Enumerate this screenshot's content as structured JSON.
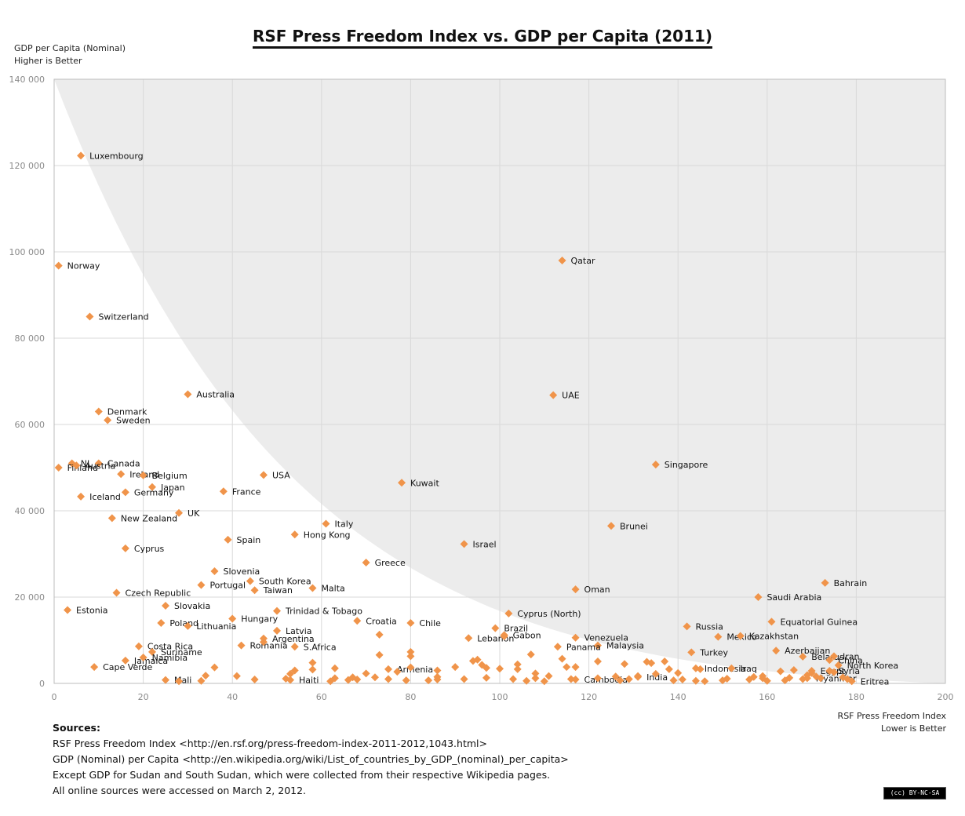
{
  "title": "RSF Press Freedom Index vs. GDP per Capita (2011)",
  "y_axis": {
    "line1": "GDP per Capita (Nominal)",
    "line2": "Higher is Better"
  },
  "x_axis": {
    "line1": "RSF Press Freedom Index",
    "line2": "Lower is Better"
  },
  "sources": {
    "heading": "Sources:",
    "lines": [
      "RSF Press Freedom Index <http://en.rsf.org/press-freedom-index-2011-2012,1043.html>",
      "GDP (Nominal) per Capita <http://en.wikipedia.org/wiki/List_of_countries_by_GDP_(nominal)_per_capita>",
      "Except GDP for Sudan and South Sudan, which were collected from their respective Wikipedia pages.",
      "All online sources were accessed on March 2, 2012."
    ]
  },
  "license_badge": "(cc) BY-NC-SA",
  "colors": {
    "marker": "#f0944a",
    "shade": "#ececec",
    "grid": "#d9d9d9"
  },
  "chart_data": {
    "type": "scatter",
    "xlim": [
      0,
      200
    ],
    "ylim": [
      0,
      140000
    ],
    "x_ticks": [
      0,
      20,
      40,
      60,
      80,
      100,
      120,
      140,
      160,
      180,
      200
    ],
    "y_ticks": [
      0,
      20000,
      40000,
      60000,
      80000,
      100000,
      120000,
      140000
    ],
    "y_tick_labels": [
      "0",
      "20 000",
      "40 000",
      "60 000",
      "80 000",
      "100 000",
      "120 000",
      "140 000"
    ],
    "grid": true,
    "shaded_region": "above decaying curve from (0, 140000) to (200, 0)",
    "points": [
      {
        "label": "Luxembourg",
        "x": 6,
        "y": 122300
      },
      {
        "label": "Norway",
        "x": 1,
        "y": 96800
      },
      {
        "label": "Switzerland",
        "x": 8,
        "y": 85000
      },
      {
        "label": "Qatar",
        "x": 114,
        "y": 98000
      },
      {
        "label": "Denmark",
        "x": 10,
        "y": 63000
      },
      {
        "label": "Sweden",
        "x": 12,
        "y": 61000
      },
      {
        "label": "Australia",
        "x": 30,
        "y": 67000
      },
      {
        "label": "UAE",
        "x": 112,
        "y": 66800
      },
      {
        "label": "NL",
        "x": 4,
        "y": 51000
      },
      {
        "label": "Canada",
        "x": 10,
        "y": 51000
      },
      {
        "label": "Finland",
        "x": 1,
        "y": 50000
      },
      {
        "label": "Ireland",
        "x": 15,
        "y": 48500
      },
      {
        "label": "Belgium",
        "x": 20,
        "y": 48200
      },
      {
        "label": "Austria",
        "x": 5,
        "y": 50500
      },
      {
        "label": "USA",
        "x": 47,
        "y": 48300
      },
      {
        "label": "Singapore",
        "x": 135,
        "y": 50700
      },
      {
        "label": "Japan",
        "x": 22,
        "y": 45500
      },
      {
        "label": "France",
        "x": 38,
        "y": 44500
      },
      {
        "label": "Kuwait",
        "x": 78,
        "y": 46500
      },
      {
        "label": "Iceland",
        "x": 6,
        "y": 43300
      },
      {
        "label": "Germany",
        "x": 16,
        "y": 44300
      },
      {
        "label": "UK",
        "x": 28,
        "y": 39500
      },
      {
        "label": "New Zealand",
        "x": 13,
        "y": 38300
      },
      {
        "label": "Italy",
        "x": 61,
        "y": 37000
      },
      {
        "label": "Brunei",
        "x": 125,
        "y": 36500
      },
      {
        "label": "Hong Kong",
        "x": 54,
        "y": 34500
      },
      {
        "label": "Spain",
        "x": 39,
        "y": 33300
      },
      {
        "label": "Israel",
        "x": 92,
        "y": 32300
      },
      {
        "label": "Cyprus",
        "x": 16,
        "y": 31300
      },
      {
        "label": "Greece",
        "x": 70,
        "y": 28000
      },
      {
        "label": "Slovenia",
        "x": 36,
        "y": 26000
      },
      {
        "label": "South Korea",
        "x": 44,
        "y": 23700
      },
      {
        "label": "Portugal",
        "x": 33,
        "y": 22800
      },
      {
        "label": "Taiwan",
        "x": 45,
        "y": 21600
      },
      {
        "label": "Malta",
        "x": 58,
        "y": 22100
      },
      {
        "label": "Oman",
        "x": 117,
        "y": 21800
      },
      {
        "label": "Bahrain",
        "x": 173,
        "y": 23300
      },
      {
        "label": "Czech Republic",
        "x": 14,
        "y": 21000
      },
      {
        "label": "Saudi Arabia",
        "x": 158,
        "y": 20000
      },
      {
        "label": "Slovakia",
        "x": 25,
        "y": 18000
      },
      {
        "label": "Estonia",
        "x": 3,
        "y": 17000
      },
      {
        "label": "Trinidad & Tobago",
        "x": 50,
        "y": 16800
      },
      {
        "label": "Hungary",
        "x": 40,
        "y": 15000
      },
      {
        "label": "Cyprus (North)",
        "x": 102,
        "y": 16200
      },
      {
        "label": "Poland",
        "x": 24,
        "y": 14000
      },
      {
        "label": "Croatia",
        "x": 68,
        "y": 14500
      },
      {
        "label": "Chile",
        "x": 80,
        "y": 14000
      },
      {
        "label": "Equatorial Guinea",
        "x": 161,
        "y": 14300
      },
      {
        "label": "Lithuania",
        "x": 30,
        "y": 13300
      },
      {
        "label": "Russia",
        "x": 142,
        "y": 13200
      },
      {
        "label": "Brazil",
        "x": 99,
        "y": 12800
      },
      {
        "label": "Latvia",
        "x": 50,
        "y": 12200
      },
      {
        "label": "Gabon",
        "x": 101,
        "y": 11200
      },
      {
        "label": "Mexico",
        "x": 149,
        "y": 10800
      },
      {
        "label": "Kazakhstan",
        "x": 154,
        "y": 11000
      },
      {
        "label": "Argentina",
        "x": 47,
        "y": 10400
      },
      {
        "label": "Venezuela",
        "x": 117,
        "y": 10600
      },
      {
        "label": "Lebanon",
        "x": 93,
        "y": 10500
      },
      {
        "label": "Costa Rica",
        "x": 19,
        "y": 8600
      },
      {
        "label": "Romania",
        "x": 42,
        "y": 8800
      },
      {
        "label": "Malaysia",
        "x": 122,
        "y": 8800
      },
      {
        "label": "Panama",
        "x": 113,
        "y": 8500
      },
      {
        "label": "Turkey",
        "x": 143,
        "y": 7200
      },
      {
        "label": "Azerbaijan",
        "x": 162,
        "y": 7600
      },
      {
        "label": "Belarus",
        "x": 168,
        "y": 6200
      },
      {
        "label": "Iran",
        "x": 175,
        "y": 6300
      },
      {
        "label": "S.Africa",
        "x": 54,
        "y": 8500
      },
      {
        "label": "Suriname",
        "x": 22,
        "y": 7300
      },
      {
        "label": "Cape Verde",
        "x": 9,
        "y": 3800
      },
      {
        "label": "Jamaica",
        "x": 16,
        "y": 5300
      },
      {
        "label": "Namibia",
        "x": 20,
        "y": 6000
      },
      {
        "label": "Indonesia",
        "x": 144,
        "y": 3500
      },
      {
        "label": "Iraq",
        "x": 152,
        "y": 3500
      },
      {
        "label": "China",
        "x": 174,
        "y": 5400
      },
      {
        "label": "Egypt",
        "x": 170,
        "y": 2900
      },
      {
        "label": "North Korea",
        "x": 176,
        "y": 4200
      },
      {
        "label": "Syria",
        "x": 174,
        "y": 2900
      },
      {
        "label": "Armenia",
        "x": 75,
        "y": 3300
      },
      {
        "label": "Mali",
        "x": 25,
        "y": 800
      },
      {
        "label": "Haiti",
        "x": 53,
        "y": 800
      },
      {
        "label": "Cambodia",
        "x": 117,
        "y": 900
      },
      {
        "label": "India",
        "x": 131,
        "y": 1500
      },
      {
        "label": "Myanmar",
        "x": 169,
        "y": 1200
      },
      {
        "label": "Eritrea",
        "x": 179,
        "y": 500
      },
      {
        "label": "",
        "x": 28,
        "y": 500
      },
      {
        "label": "",
        "x": 33,
        "y": 600
      },
      {
        "label": "",
        "x": 34,
        "y": 1800
      },
      {
        "label": "",
        "x": 36,
        "y": 3700
      },
      {
        "label": "",
        "x": 41,
        "y": 1700
      },
      {
        "label": "",
        "x": 45,
        "y": 900
      },
      {
        "label": "",
        "x": 47,
        "y": 9600
      },
      {
        "label": "",
        "x": 52,
        "y": 1100
      },
      {
        "label": "",
        "x": 53,
        "y": 2200
      },
      {
        "label": "",
        "x": 54,
        "y": 3000
      },
      {
        "label": "",
        "x": 58,
        "y": 4800
      },
      {
        "label": "",
        "x": 58,
        "y": 3200
      },
      {
        "label": "",
        "x": 62,
        "y": 500
      },
      {
        "label": "",
        "x": 63,
        "y": 1200
      },
      {
        "label": "",
        "x": 63,
        "y": 3500
      },
      {
        "label": "",
        "x": 66,
        "y": 800
      },
      {
        "label": "",
        "x": 67,
        "y": 1400
      },
      {
        "label": "",
        "x": 68,
        "y": 900
      },
      {
        "label": "",
        "x": 70,
        "y": 2300
      },
      {
        "label": "",
        "x": 72,
        "y": 1400
      },
      {
        "label": "",
        "x": 73,
        "y": 11300
      },
      {
        "label": "",
        "x": 73,
        "y": 6600
      },
      {
        "label": "",
        "x": 75,
        "y": 1000
      },
      {
        "label": "",
        "x": 77,
        "y": 2700
      },
      {
        "label": "",
        "x": 79,
        "y": 700
      },
      {
        "label": "",
        "x": 80,
        "y": 7300
      },
      {
        "label": "",
        "x": 80,
        "y": 6300
      },
      {
        "label": "",
        "x": 80,
        "y": 3700
      },
      {
        "label": "",
        "x": 84,
        "y": 700
      },
      {
        "label": "",
        "x": 86,
        "y": 1500
      },
      {
        "label": "",
        "x": 86,
        "y": 3000
      },
      {
        "label": "",
        "x": 86,
        "y": 900
      },
      {
        "label": "",
        "x": 90,
        "y": 3800
      },
      {
        "label": "",
        "x": 92,
        "y": 1000
      },
      {
        "label": "",
        "x": 94,
        "y": 5200
      },
      {
        "label": "",
        "x": 95,
        "y": 5500
      },
      {
        "label": "",
        "x": 96,
        "y": 4300
      },
      {
        "label": "",
        "x": 97,
        "y": 3600
      },
      {
        "label": "",
        "x": 97,
        "y": 1300
      },
      {
        "label": "",
        "x": 100,
        "y": 3400
      },
      {
        "label": "",
        "x": 101,
        "y": 10900
      },
      {
        "label": "",
        "x": 103,
        "y": 1000
      },
      {
        "label": "",
        "x": 104,
        "y": 4400
      },
      {
        "label": "",
        "x": 104,
        "y": 3300
      },
      {
        "label": "",
        "x": 106,
        "y": 600
      },
      {
        "label": "",
        "x": 107,
        "y": 6700
      },
      {
        "label": "",
        "x": 108,
        "y": 2300
      },
      {
        "label": "",
        "x": 108,
        "y": 1200
      },
      {
        "label": "",
        "x": 110,
        "y": 500
      },
      {
        "label": "",
        "x": 111,
        "y": 1700
      },
      {
        "label": "",
        "x": 114,
        "y": 5700
      },
      {
        "label": "",
        "x": 115,
        "y": 3800
      },
      {
        "label": "",
        "x": 116,
        "y": 1000
      },
      {
        "label": "",
        "x": 117,
        "y": 3800
      },
      {
        "label": "",
        "x": 122,
        "y": 5100
      },
      {
        "label": "",
        "x": 122,
        "y": 1200
      },
      {
        "label": "",
        "x": 126,
        "y": 1600
      },
      {
        "label": "",
        "x": 127,
        "y": 700
      },
      {
        "label": "",
        "x": 128,
        "y": 4500
      },
      {
        "label": "",
        "x": 129,
        "y": 1000
      },
      {
        "label": "",
        "x": 131,
        "y": 1700
      },
      {
        "label": "",
        "x": 133,
        "y": 5000
      },
      {
        "label": "",
        "x": 134,
        "y": 4700
      },
      {
        "label": "",
        "x": 135,
        "y": 2200
      },
      {
        "label": "",
        "x": 137,
        "y": 5100
      },
      {
        "label": "",
        "x": 138,
        "y": 3300
      },
      {
        "label": "",
        "x": 139,
        "y": 700
      },
      {
        "label": "",
        "x": 140,
        "y": 2400
      },
      {
        "label": "",
        "x": 141,
        "y": 900
      },
      {
        "label": "",
        "x": 144,
        "y": 600
      },
      {
        "label": "",
        "x": 145,
        "y": 3300
      },
      {
        "label": "",
        "x": 146,
        "y": 500
      },
      {
        "label": "",
        "x": 150,
        "y": 700
      },
      {
        "label": "",
        "x": 151,
        "y": 1100
      },
      {
        "label": "",
        "x": 156,
        "y": 900
      },
      {
        "label": "",
        "x": 157,
        "y": 1500
      },
      {
        "label": "",
        "x": 159,
        "y": 1200
      },
      {
        "label": "",
        "x": 159,
        "y": 1700
      },
      {
        "label": "",
        "x": 160,
        "y": 600
      },
      {
        "label": "",
        "x": 163,
        "y": 2800
      },
      {
        "label": "",
        "x": 164,
        "y": 700
      },
      {
        "label": "",
        "x": 165,
        "y": 1300
      },
      {
        "label": "",
        "x": 166,
        "y": 3100
      },
      {
        "label": "",
        "x": 168,
        "y": 1000
      },
      {
        "label": "",
        "x": 169,
        "y": 1900
      },
      {
        "label": "",
        "x": 170,
        "y": 2400
      },
      {
        "label": "",
        "x": 171,
        "y": 1600
      },
      {
        "label": "",
        "x": 172,
        "y": 1200
      },
      {
        "label": "",
        "x": 175,
        "y": 2600
      },
      {
        "label": "",
        "x": 177,
        "y": 1400
      },
      {
        "label": "",
        "x": 178,
        "y": 1000
      }
    ]
  }
}
